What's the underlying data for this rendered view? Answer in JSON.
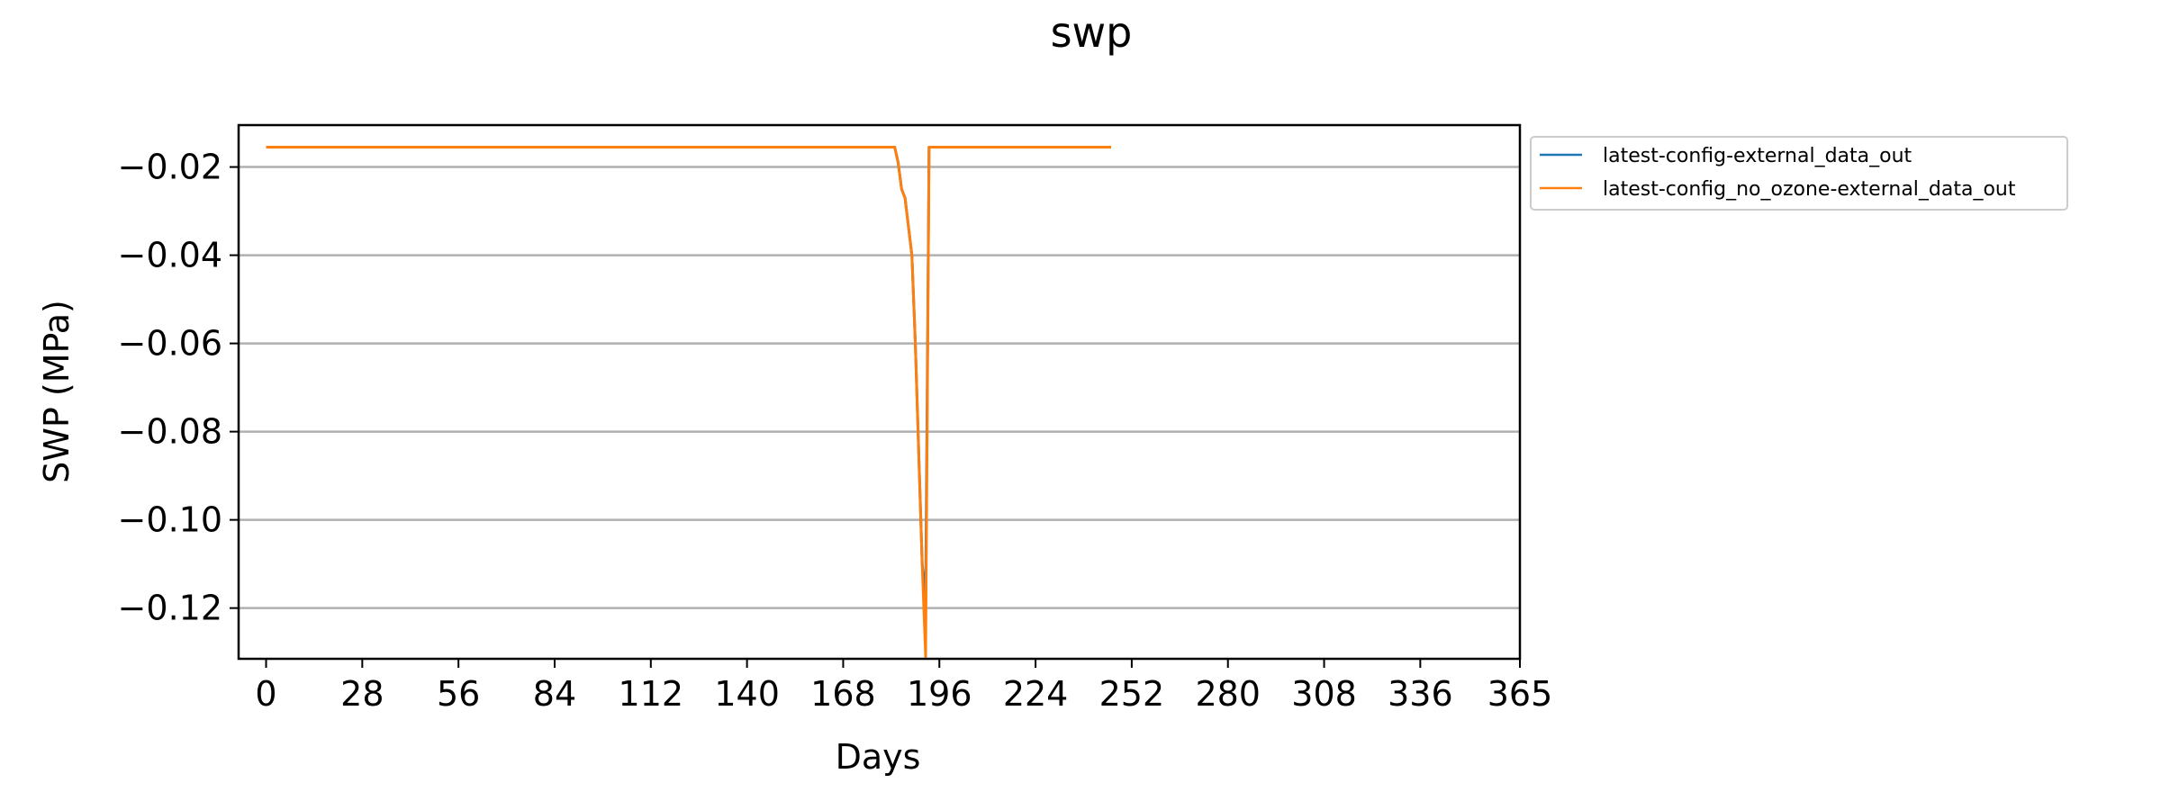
{
  "chart_data": {
    "type": "line",
    "title": "swp",
    "xlabel": "Days",
    "ylabel": "SWP (MPa)",
    "xlim": [
      -8,
      365
    ],
    "ylim": [
      -0.1315,
      -0.0105
    ],
    "xticks": [
      0,
      28,
      56,
      84,
      112,
      140,
      168,
      196,
      224,
      252,
      280,
      308,
      336,
      365
    ],
    "yticks": [
      -0.02,
      -0.04,
      -0.06,
      -0.08,
      -0.1,
      -0.12
    ],
    "ytick_labels": [
      "−0.02",
      "−0.04",
      "−0.06",
      "−0.08",
      "−0.10",
      "−0.12"
    ],
    "grid": "horizontal",
    "legend_position": "outside-top-right",
    "series": [
      {
        "name": "latest-config-external_data_out",
        "color": "#1f77b4",
        "points": [
          [
            0,
            -0.0155
          ],
          [
            183,
            -0.0155
          ],
          [
            184,
            -0.019
          ],
          [
            185,
            -0.025
          ],
          [
            186,
            -0.027
          ],
          [
            188,
            -0.04
          ],
          [
            189,
            -0.06
          ],
          [
            190,
            -0.085
          ],
          [
            191,
            -0.11
          ],
          [
            192,
            -0.118
          ],
          [
            193,
            -0.0155
          ],
          [
            246,
            -0.0155
          ]
        ]
      },
      {
        "name": "latest-config_no_ozone-external_data_out",
        "color": "#ff7f0e",
        "points": [
          [
            0,
            -0.0155
          ],
          [
            183,
            -0.0155
          ],
          [
            184,
            -0.019
          ],
          [
            185,
            -0.025
          ],
          [
            186,
            -0.027
          ],
          [
            188,
            -0.04
          ],
          [
            189,
            -0.06
          ],
          [
            190,
            -0.085
          ],
          [
            191,
            -0.11
          ],
          [
            192,
            -0.131
          ],
          [
            193,
            -0.0155
          ],
          [
            246,
            -0.0155
          ]
        ]
      }
    ]
  }
}
